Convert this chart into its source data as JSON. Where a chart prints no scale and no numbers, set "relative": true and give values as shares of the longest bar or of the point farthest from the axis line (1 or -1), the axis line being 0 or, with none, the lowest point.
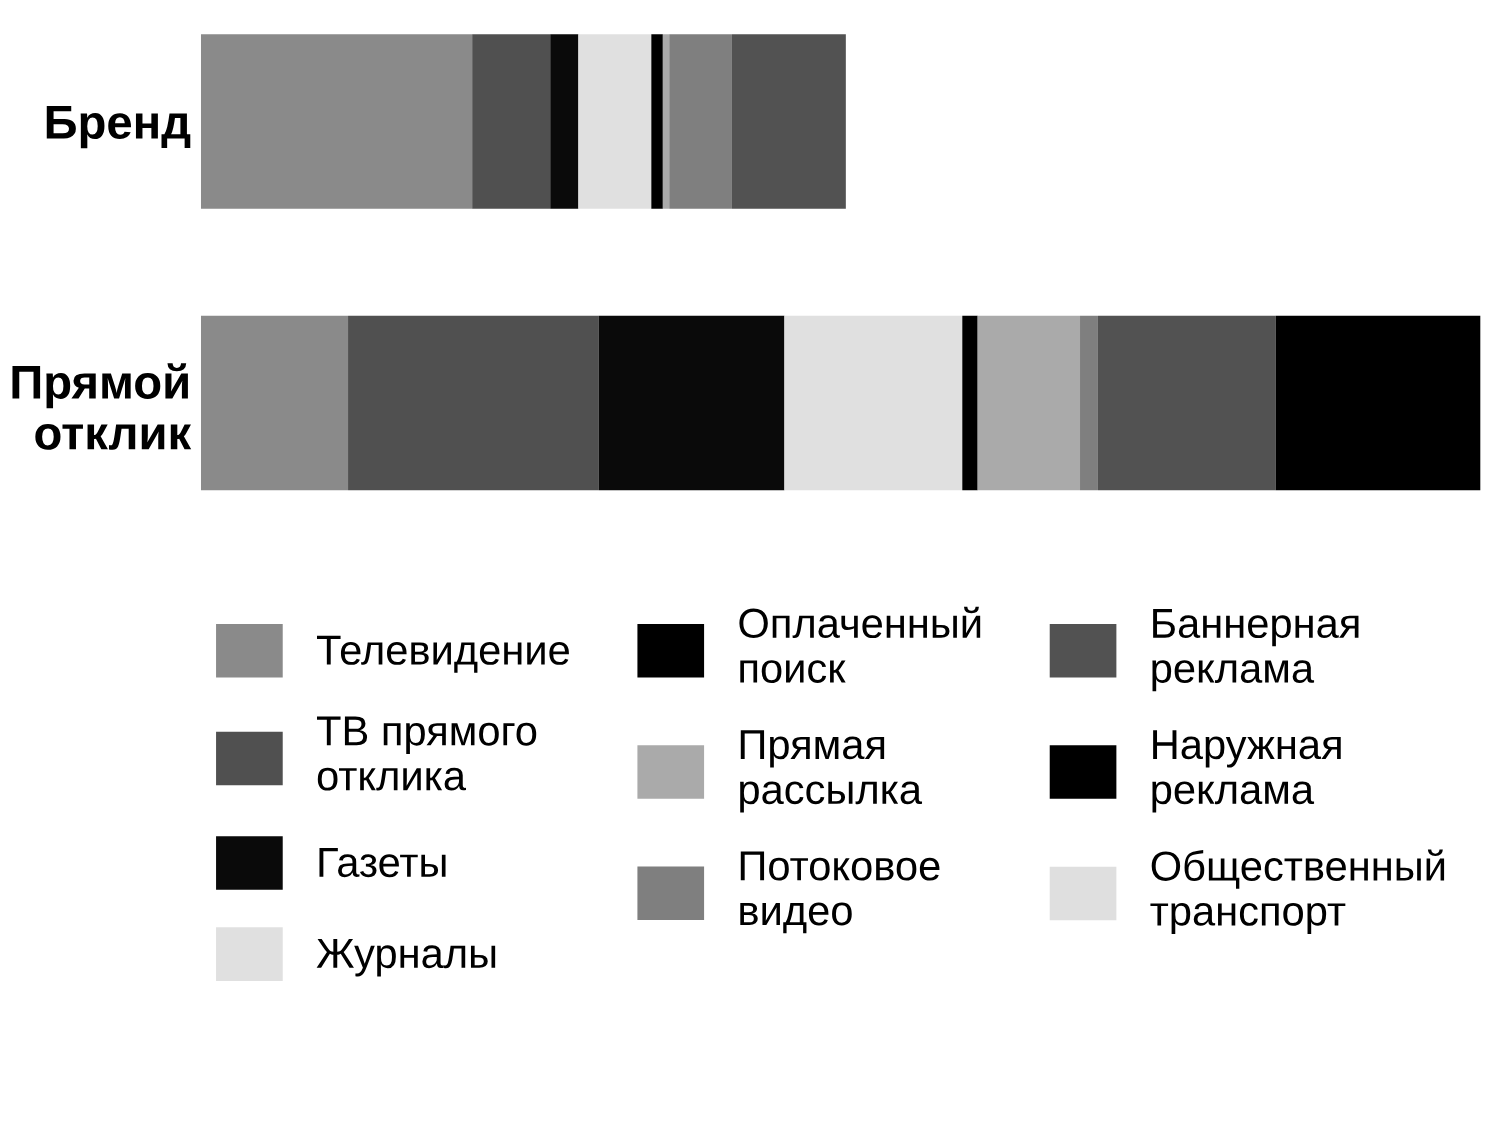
{
  "chart_data": {
    "type": "bar",
    "orientation": "horizontal",
    "stacked": true,
    "relative": true,
    "legend": "bottom",
    "grid": false,
    "categories": [
      "Бренд",
      "Прямой отклик"
    ],
    "series": [
      {
        "name": "Телевидение",
        "color": "#8a8a8a",
        "values": [
          0.212,
          0.115
        ]
      },
      {
        "name": "ТВ прямого отклика",
        "color": "#505050",
        "values": [
          0.061,
          0.196
        ]
      },
      {
        "name": "Газеты",
        "color": "#0a0a0a",
        "values": [
          0.022,
          0.145
        ]
      },
      {
        "name": "Журналы",
        "color": "#e0e0e0",
        "values": [
          0.057,
          0.139
        ]
      },
      {
        "name": "Оплаченный поиск",
        "color": "#000000",
        "values": [
          0.009,
          0.012
        ]
      },
      {
        "name": "Прямая рассылка",
        "color": "#aaaaaa",
        "values": [
          0.005,
          0.08
        ]
      },
      {
        "name": "Потоковое видео",
        "color": "#7f7f7f",
        "values": [
          0.049,
          0.014
        ]
      },
      {
        "name": "Баннерная реклама",
        "color": "#525252",
        "values": [
          0.089,
          0.139
        ]
      },
      {
        "name": "Наружная реклама",
        "color": "#000000",
        "values": [
          null,
          0.16
        ]
      },
      {
        "name": "Общественный транспорт",
        "color": "#dfdfdf",
        "values": [
          null,
          null
        ]
      }
    ]
  }
}
